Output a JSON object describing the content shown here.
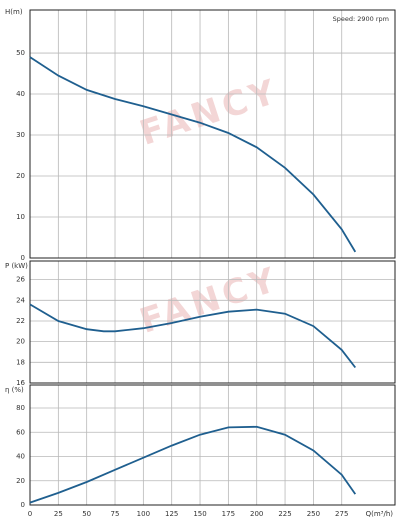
{
  "chart_data": [
    {
      "type": "line",
      "ylabel": "H(m)",
      "annotation": "Speed: 2900 rpm",
      "watermark": "FANCY",
      "x": [
        0,
        25,
        50,
        75,
        100,
        125,
        150,
        175,
        200,
        225,
        250,
        275,
        287
      ],
      "series": [
        {
          "name": "H",
          "color": "#1f5f8f",
          "values": [
            49,
            44.5,
            41,
            38.8,
            37,
            35,
            33,
            30.5,
            27,
            22,
            15.5,
            7,
            1.5
          ]
        }
      ],
      "xlim": [
        0,
        322
      ],
      "xticks": [
        0,
        25,
        50,
        75,
        100,
        125,
        150,
        175,
        200,
        225,
        250,
        275
      ],
      "ylim": [
        0,
        60.5
      ],
      "yticks": [
        0,
        10,
        20,
        30,
        40,
        50
      ],
      "grid": true
    },
    {
      "type": "line",
      "ylabel": "P (kW)",
      "watermark": "FANCY",
      "x": [
        0,
        25,
        50,
        65,
        75,
        100,
        125,
        150,
        175,
        200,
        225,
        250,
        275,
        287
      ],
      "series": [
        {
          "name": "P",
          "color": "#1f5f8f",
          "values": [
            23.6,
            22,
            21.2,
            21,
            21,
            21.3,
            21.8,
            22.4,
            22.9,
            23.1,
            22.7,
            21.5,
            19.2,
            17.5
          ]
        }
      ],
      "xlim": [
        0,
        322
      ],
      "xticks": [
        0,
        25,
        50,
        75,
        100,
        125,
        150,
        175,
        200,
        225,
        250,
        275
      ],
      "ylim": [
        16,
        27.8
      ],
      "yticks": [
        16,
        18,
        20,
        22,
        24,
        26
      ],
      "grid": true
    },
    {
      "type": "line",
      "ylabel": "η (%)",
      "xlabel": "Q(m³/h)",
      "x": [
        0,
        25,
        50,
        75,
        100,
        125,
        150,
        175,
        200,
        225,
        250,
        275,
        287
      ],
      "series": [
        {
          "name": "η",
          "color": "#1f5f8f",
          "values": [
            2,
            10,
            19,
            29,
            39,
            49,
            58,
            64,
            64.5,
            58,
            45,
            25,
            9
          ]
        }
      ],
      "xlim": [
        0,
        322
      ],
      "xticks": [
        0,
        25,
        50,
        75,
        100,
        125,
        150,
        175,
        200,
        225,
        250,
        275
      ],
      "ylim": [
        0,
        99
      ],
      "yticks": [
        0,
        20,
        40,
        60,
        80
      ],
      "grid": true
    }
  ]
}
